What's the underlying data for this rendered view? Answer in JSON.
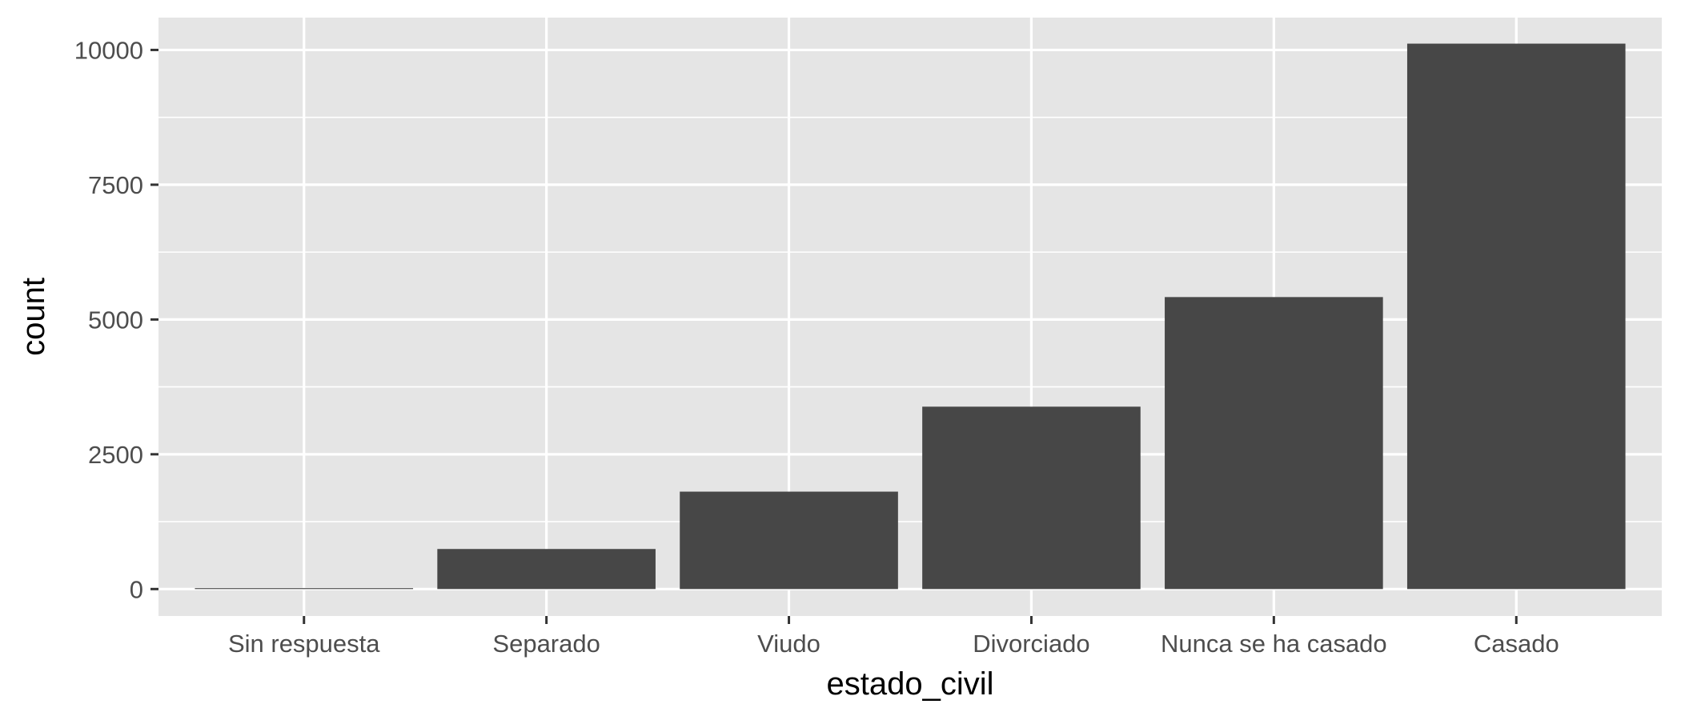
{
  "chart_data": {
    "type": "bar",
    "title": "",
    "xlabel": "estado_civil",
    "ylabel": "count",
    "categories": [
      "Sin respuesta",
      "Separado",
      "Viudo",
      "Divorciado",
      "Nunca se ha casado",
      "Casado"
    ],
    "values": [
      17,
      743,
      1807,
      3383,
      5416,
      10117
    ],
    "ylim": [
      -500,
      10600
    ],
    "yticks": [
      0,
      2500,
      5000,
      7500,
      10000
    ],
    "ytick_labels": [
      "0",
      "2500",
      "5000",
      "7500",
      "10000"
    ],
    "grid": true,
    "legend": "none",
    "colors": {
      "panel_background": "#e5e5e5",
      "grid": "#ffffff",
      "bar_fill": "#474747",
      "tick_text": "#4d4d4d",
      "tick_mark": "#333333",
      "axis_title": "#000000"
    }
  }
}
